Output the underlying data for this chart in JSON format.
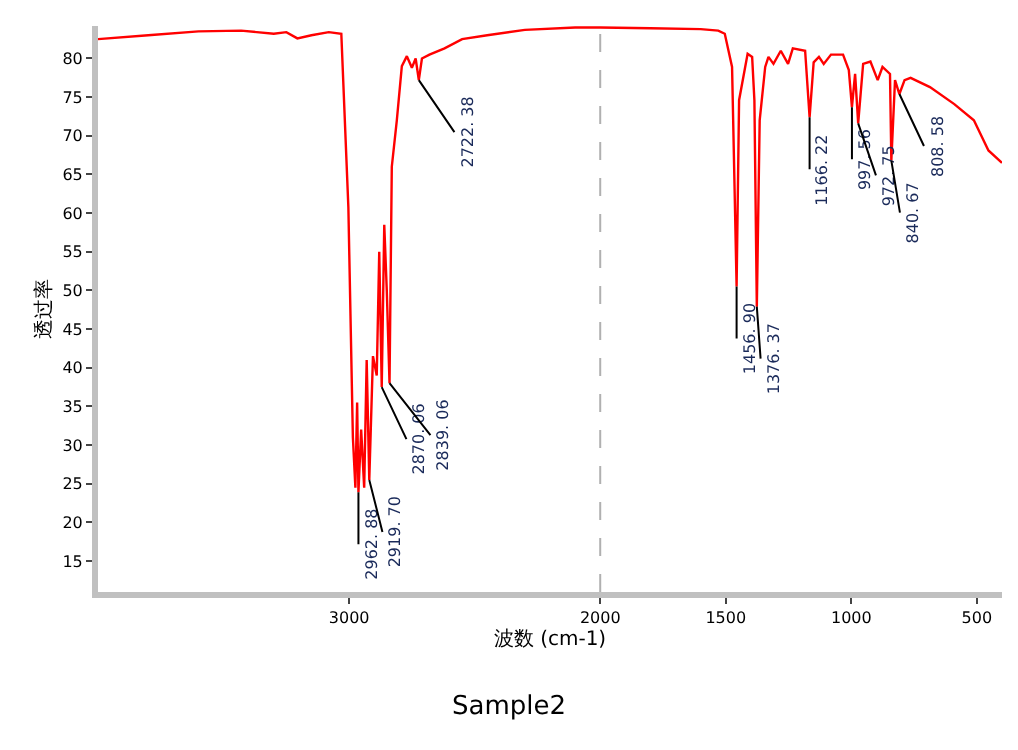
{
  "chart_data": {
    "type": "line",
    "title": "Sample2",
    "xlabel": "波数 (cm-1)",
    "ylabel": "透过率",
    "xlim": [
      4000,
      400
    ],
    "ylim": [
      11,
      84.2
    ],
    "xticks": [
      3000,
      2000,
      1500,
      1000,
      500
    ],
    "yticks": [
      15,
      20,
      25,
      30,
      35,
      40,
      45,
      50,
      55,
      60,
      65,
      70,
      75,
      80
    ],
    "grid": false,
    "marker": "none",
    "line_style": "solid",
    "ref_lines": [
      {
        "axis": "x",
        "value": 2000,
        "color": "#b0b0b0",
        "line_style": "dashed"
      }
    ],
    "series": [
      {
        "color": "#ff0000",
        "x": [
          4000,
          3800,
          3600,
          3430,
          3300,
          3250,
          3206,
          3150,
          3081,
          3031,
          3003,
          2985,
          2975,
          2968,
          2962.88,
          2952,
          2940,
          2930,
          2919.7,
          2905,
          2890,
          2880,
          2870.06,
          2860,
          2850,
          2839.06,
          2830,
          2810,
          2790,
          2770,
          2750,
          2735,
          2722.38,
          2710,
          2680,
          2620,
          2550,
          2450,
          2300,
          2100,
          2000,
          1800,
          1600,
          1530,
          1504,
          1475,
          1456.9,
          1447,
          1413,
          1395,
          1386,
          1376.37,
          1365,
          1343,
          1330,
          1310,
          1281,
          1252,
          1233,
          1184,
          1166.22,
          1150,
          1129,
          1110,
          1081,
          1033,
          1010,
          997.56,
          985,
          972.75,
          953,
          924,
          895,
          876,
          846,
          840.67,
          826,
          808.58,
          788,
          764,
          687,
          590,
          512,
          454,
          400
        ],
        "values": [
          82.5,
          83,
          83.5,
          83.6,
          83.2,
          83.4,
          82.6,
          83,
          83.4,
          83.2,
          60.8,
          31,
          24.5,
          35.5,
          23.9,
          32,
          24.5,
          41,
          25.5,
          41.5,
          39,
          55,
          37.5,
          58.5,
          50,
          38,
          66,
          72,
          79,
          80.3,
          78.8,
          80,
          77.2,
          80,
          80.5,
          81.3,
          82.5,
          83,
          83.7,
          84,
          84,
          83.9,
          83.8,
          83.6,
          83.2,
          78.9,
          50.5,
          74.6,
          80.6,
          80.2,
          74.6,
          47.9,
          72,
          78.9,
          80.2,
          79.3,
          81,
          79.3,
          81.3,
          81,
          72.4,
          79.5,
          80.2,
          79.3,
          80.5,
          80.5,
          78.5,
          73.7,
          78,
          71.6,
          79.3,
          79.6,
          77.2,
          78.9,
          78,
          66.8,
          77.2,
          75.4,
          77.2,
          77.5,
          76.3,
          74.1,
          72,
          68.1,
          66.5
        ]
      }
    ],
    "annotations": [
      {
        "text": "2962. 88",
        "x": 2962.88,
        "y": 23.9
      },
      {
        "text": "2919. 70",
        "x": 2919.7,
        "y": 25.5
      },
      {
        "text": "2870. 06",
        "x": 2870.06,
        "y": 37.5
      },
      {
        "text": "2839. 06",
        "x": 2839.06,
        "y": 38
      },
      {
        "text": "2722. 38",
        "x": 2722.38,
        "y": 77.2
      },
      {
        "text": "1456. 90",
        "x": 1456.9,
        "y": 50.5
      },
      {
        "text": "1376. 37",
        "x": 1376.37,
        "y": 47.9
      },
      {
        "text": "1166. 22",
        "x": 1166.22,
        "y": 72.4
      },
      {
        "text": "997. 56",
        "x": 997.56,
        "y": 73.7
      },
      {
        "text": "972. 75",
        "x": 972.75,
        "y": 71.6
      },
      {
        "text": "840. 67",
        "x": 840.67,
        "y": 66.8
      },
      {
        "text": "808. 58",
        "x": 808.58,
        "y": 75.4
      }
    ]
  }
}
